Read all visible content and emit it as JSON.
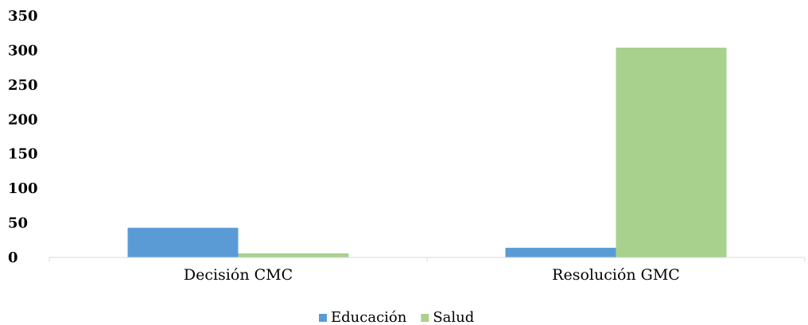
{
  "chart_data": {
    "type": "bar",
    "categories": [
      "Decisión CMC",
      "Resolución GMC"
    ],
    "series": [
      {
        "name": "Educación",
        "color": "#5b9bd5",
        "values": [
          43,
          14
        ]
      },
      {
        "name": "Salud",
        "color": "#a9d18e",
        "values": [
          6,
          304
        ]
      }
    ],
    "ylim": [
      0,
      350
    ],
    "yticks": [
      "0",
      "50",
      "100",
      "150",
      "200",
      "250",
      "300",
      "350"
    ],
    "ytick_values": [
      0,
      50,
      100,
      150,
      200,
      250,
      300,
      350
    ],
    "grid": false,
    "legend": "bottom-center"
  }
}
